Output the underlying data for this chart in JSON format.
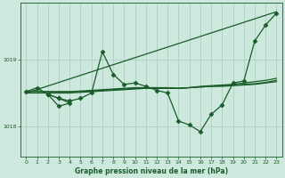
{
  "background_color": "#cde8dc",
  "grid_color": "#a8ccbe",
  "line_color": "#1a5c2a",
  "title": "Graphe pression niveau de la mer (hPa)",
  "xlim": [
    -0.5,
    23.5
  ],
  "ylim": [
    1017.55,
    1019.85
  ],
  "yticks": [
    1018,
    1019
  ],
  "xticks": [
    0,
    1,
    2,
    3,
    4,
    5,
    6,
    7,
    8,
    9,
    10,
    11,
    12,
    13,
    14,
    15,
    16,
    17,
    18,
    19,
    20,
    21,
    22,
    23
  ],
  "series": [
    {
      "x": [
        0,
        1,
        2,
        3,
        4,
        5,
        6,
        7,
        8,
        9,
        10,
        11,
        12,
        13,
        14,
        15,
        16,
        17,
        18,
        19,
        20,
        21,
        22,
        23
      ],
      "y": [
        1018.52,
        1018.58,
        1018.48,
        1018.42,
        1018.38,
        1018.42,
        1018.5,
        1019.12,
        1018.78,
        1018.63,
        1018.65,
        1018.6,
        1018.54,
        1018.5,
        1018.08,
        1018.02,
        1017.92,
        1018.18,
        1018.32,
        1018.65,
        1018.68,
        1019.28,
        1019.52,
        1019.7
      ],
      "marker": "D",
      "markersize": 2.5,
      "linewidth": 0.9
    },
    {
      "x": [
        0,
        1,
        2,
        3,
        4,
        5,
        6,
        7,
        8,
        9,
        10,
        11,
        12,
        13,
        14,
        15,
        16,
        17,
        18,
        19,
        20,
        21,
        22,
        23
      ],
      "y": [
        1018.5,
        1018.5,
        1018.5,
        1018.5,
        1018.5,
        1018.51,
        1018.52,
        1018.53,
        1018.54,
        1018.55,
        1018.56,
        1018.57,
        1018.57,
        1018.57,
        1018.57,
        1018.58,
        1018.59,
        1018.6,
        1018.6,
        1018.61,
        1018.62,
        1018.63,
        1018.65,
        1018.67
      ],
      "marker": null,
      "markersize": 0,
      "linewidth": 0.9
    },
    {
      "x": [
        0,
        1,
        2,
        3,
        4,
        5,
        6,
        7,
        8,
        9,
        10,
        11,
        12,
        13,
        14,
        15,
        16,
        17,
        18,
        19,
        20,
        21,
        22,
        23
      ],
      "y": [
        1018.52,
        1018.52,
        1018.52,
        1018.52,
        1018.52,
        1018.52,
        1018.53,
        1018.54,
        1018.55,
        1018.56,
        1018.57,
        1018.57,
        1018.57,
        1018.57,
        1018.57,
        1018.58,
        1018.59,
        1018.6,
        1018.61,
        1018.62,
        1018.63,
        1018.64,
        1018.66,
        1018.69
      ],
      "marker": null,
      "markersize": 0,
      "linewidth": 0.9
    },
    {
      "x": [
        0,
        1,
        2,
        3,
        4,
        5,
        6,
        7,
        8,
        9,
        10,
        11,
        12,
        13,
        14,
        15,
        16,
        17,
        18,
        19,
        20,
        21,
        22,
        23
      ],
      "y": [
        1018.53,
        1018.53,
        1018.52,
        1018.52,
        1018.52,
        1018.53,
        1018.54,
        1018.55,
        1018.56,
        1018.57,
        1018.58,
        1018.58,
        1018.58,
        1018.58,
        1018.57,
        1018.58,
        1018.6,
        1018.61,
        1018.62,
        1018.63,
        1018.65,
        1018.67,
        1018.69,
        1018.72
      ],
      "marker": null,
      "markersize": 0,
      "linewidth": 0.9
    },
    {
      "x": [
        0,
        23
      ],
      "y": [
        1018.5,
        1019.72
      ],
      "marker": null,
      "markersize": 0,
      "linewidth": 0.9
    },
    {
      "x": [
        2,
        3,
        4,
        3,
        2
      ],
      "y": [
        1018.48,
        1018.42,
        1018.35,
        1018.3,
        1018.48
      ],
      "marker": "D",
      "markersize": 2.5,
      "linewidth": 0.9
    }
  ]
}
